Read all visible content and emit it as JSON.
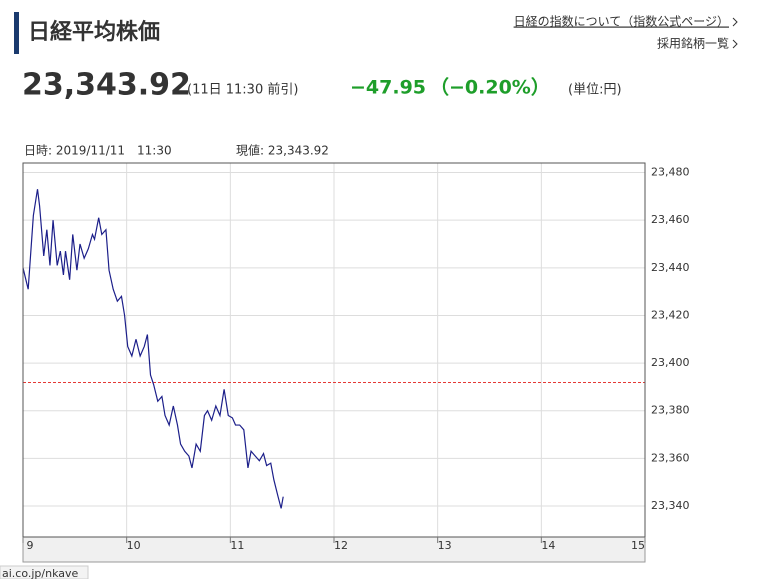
{
  "header": {
    "title": "日経平均株価",
    "links": [
      "日経の指数について（指数公式ページ）",
      "採用銘柄一覧"
    ]
  },
  "quote": {
    "price": "23,343.92",
    "time": "(11日 11:30 前引)",
    "change": "−47.95",
    "change_pct": "（−0.20%）",
    "unit": "(単位:円)"
  },
  "chart_info": {
    "date": "日時: 2019/11/11　11:30",
    "current": "現値: 23,343.92"
  },
  "status_url": "ai.co.jp/nkave",
  "chart_data": {
    "type": "line",
    "x": [
      9.0,
      9.05,
      9.1,
      9.14,
      9.16,
      9.2,
      9.23,
      9.26,
      9.29,
      9.33,
      9.36,
      9.39,
      9.41,
      9.45,
      9.48,
      9.52,
      9.55,
      9.59,
      9.63,
      9.67,
      9.69,
      9.73,
      9.76,
      9.8,
      9.83,
      9.87,
      9.91,
      9.95,
      9.98,
      10.01,
      10.05,
      10.09,
      10.13,
      10.17,
      10.2,
      10.23,
      10.26,
      10.3,
      10.34,
      10.37,
      10.41,
      10.45,
      10.49,
      10.52,
      10.56,
      10.6,
      10.63,
      10.67,
      10.71,
      10.75,
      10.78,
      10.82,
      10.86,
      10.9,
      10.94,
      10.98,
      11.02,
      11.05,
      11.09,
      11.13,
      11.17,
      11.2,
      11.24,
      11.28,
      11.32,
      11.35,
      11.39,
      11.42,
      11.46,
      11.49,
      11.51
    ],
    "series": [
      {
        "color": "#1c1f8a",
        "values": [
          23440,
          23431,
          23462,
          23473,
          23466,
          23445,
          23456,
          23441,
          23460,
          23441,
          23447,
          23437,
          23447,
          23435,
          23454,
          23439,
          23450,
          23444,
          23448,
          23454,
          23452,
          23461,
          23454,
          23456,
          23439,
          23431,
          23426,
          23428,
          23420,
          23407,
          23403,
          23410,
          23403,
          23407,
          23412,
          23395,
          23391,
          23384,
          23386,
          23378,
          23374,
          23382,
          23374,
          23366,
          23363,
          23361,
          23356,
          23366,
          23363,
          23378,
          23380,
          23376,
          23382,
          23378,
          23389,
          23378,
          23377,
          23374,
          23374,
          23372,
          23356,
          23363,
          23361,
          23359,
          23362,
          23357,
          23358,
          23351,
          23344,
          23339,
          23343.92
        ]
      }
    ],
    "xlim": [
      9,
      15
    ],
    "xticks": [
      9,
      10,
      11,
      12,
      13,
      14,
      15
    ],
    "ylim": [
      23327,
      23484
    ],
    "yticks": [
      {
        "value": 23340,
        "label": "23,340"
      },
      {
        "value": 23360,
        "label": "23,360"
      },
      {
        "value": 23380,
        "label": "23,380"
      },
      {
        "value": 23400,
        "label": "23,400"
      },
      {
        "value": 23420,
        "label": "23,420"
      },
      {
        "value": 23440,
        "label": "23,440"
      },
      {
        "value": 23460,
        "label": "23,460"
      },
      {
        "value": 23480,
        "label": "23,480"
      }
    ],
    "reference_line": 23391.87,
    "reference_color": "#e53935",
    "grid": true
  }
}
